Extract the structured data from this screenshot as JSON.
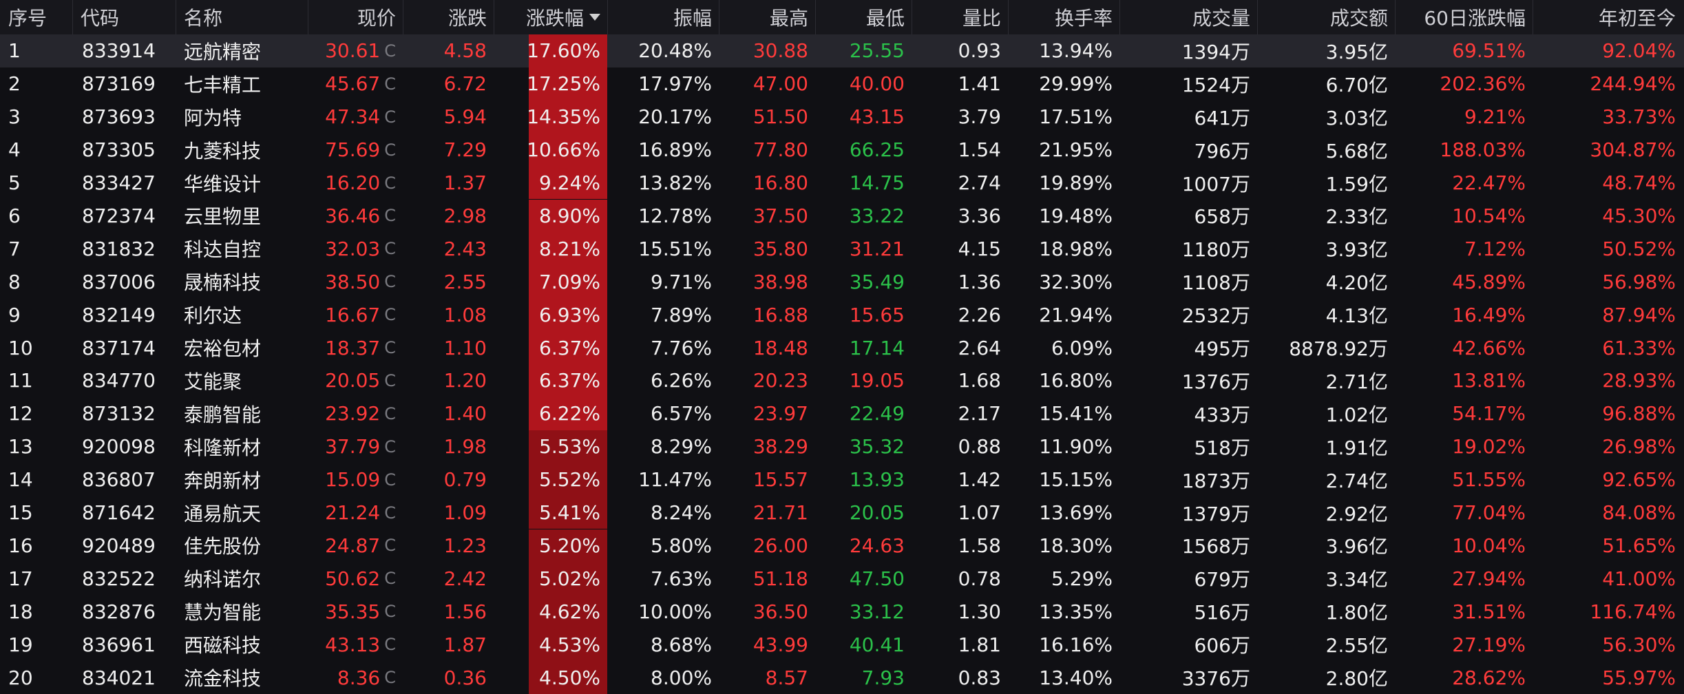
{
  "header": {
    "seq": "序号",
    "code": "代码",
    "name": "名称",
    "price": "现价",
    "change": "涨跌",
    "pct": "涨跌幅",
    "amplitude": "振幅",
    "high": "最高",
    "low": "最低",
    "vol_ratio": "量比",
    "turnover": "换手率",
    "volume": "成交量",
    "amount": "成交额",
    "d60": "60日涨跌幅",
    "ytd": "年初至今"
  },
  "price_flag": "C",
  "colors": {
    "up": "#ff3b3b",
    "down": "#2bc14a",
    "pct_bg_strong": "#b0151d",
    "pct_bg_mid": "#8f1016"
  },
  "rows": [
    {
      "seq": "1",
      "code": "833914",
      "name": "远航精密",
      "price": "30.61",
      "change": "4.58",
      "pct": "17.60%",
      "pct_value": 17.6,
      "amplitude": "20.48%",
      "high": "30.88",
      "low": "25.55",
      "low_dir": "down",
      "vol_ratio": "0.93",
      "turnover": "13.94%",
      "volume": "1394万",
      "amount": "3.95亿",
      "d60": "69.51%",
      "ytd": "92.04%"
    },
    {
      "seq": "2",
      "code": "873169",
      "name": "七丰精工",
      "price": "45.67",
      "change": "6.72",
      "pct": "17.25%",
      "pct_value": 17.25,
      "amplitude": "17.97%",
      "high": "47.00",
      "low": "40.00",
      "low_dir": "up",
      "vol_ratio": "1.41",
      "turnover": "29.99%",
      "volume": "1524万",
      "amount": "6.70亿",
      "d60": "202.36%",
      "ytd": "244.94%"
    },
    {
      "seq": "3",
      "code": "873693",
      "name": "阿为特",
      "price": "47.34",
      "change": "5.94",
      "pct": "14.35%",
      "pct_value": 14.35,
      "amplitude": "20.17%",
      "high": "51.50",
      "low": "43.15",
      "low_dir": "up",
      "vol_ratio": "3.79",
      "turnover": "17.51%",
      "volume": "641万",
      "amount": "3.03亿",
      "d60": "9.21%",
      "ytd": "33.73%"
    },
    {
      "seq": "4",
      "code": "873305",
      "name": "九菱科技",
      "price": "75.69",
      "change": "7.29",
      "pct": "10.66%",
      "pct_value": 10.66,
      "amplitude": "16.89%",
      "high": "77.80",
      "low": "66.25",
      "low_dir": "down",
      "vol_ratio": "1.54",
      "turnover": "21.95%",
      "volume": "796万",
      "amount": "5.68亿",
      "d60": "188.03%",
      "ytd": "304.87%"
    },
    {
      "seq": "5",
      "code": "833427",
      "name": "华维设计",
      "price": "16.20",
      "change": "1.37",
      "pct": "9.24%",
      "pct_value": 9.24,
      "amplitude": "13.82%",
      "high": "16.80",
      "low": "14.75",
      "low_dir": "down",
      "vol_ratio": "2.74",
      "turnover": "19.89%",
      "volume": "1007万",
      "amount": "1.59亿",
      "d60": "22.47%",
      "ytd": "48.74%"
    },
    {
      "seq": "6",
      "code": "872374",
      "name": "云里物里",
      "price": "36.46",
      "change": "2.98",
      "pct": "8.90%",
      "pct_value": 8.9,
      "amplitude": "12.78%",
      "high": "37.50",
      "low": "33.22",
      "low_dir": "down",
      "vol_ratio": "3.36",
      "turnover": "19.48%",
      "volume": "658万",
      "amount": "2.33亿",
      "d60": "10.54%",
      "ytd": "45.30%"
    },
    {
      "seq": "7",
      "code": "831832",
      "name": "科达自控",
      "price": "32.03",
      "change": "2.43",
      "pct": "8.21%",
      "pct_value": 8.21,
      "amplitude": "15.51%",
      "high": "35.80",
      "low": "31.21",
      "low_dir": "up",
      "vol_ratio": "4.15",
      "turnover": "18.98%",
      "volume": "1180万",
      "amount": "3.93亿",
      "d60": "7.12%",
      "ytd": "50.52%"
    },
    {
      "seq": "8",
      "code": "837006",
      "name": "晟楠科技",
      "price": "38.50",
      "change": "2.55",
      "pct": "7.09%",
      "pct_value": 7.09,
      "amplitude": "9.71%",
      "high": "38.98",
      "low": "35.49",
      "low_dir": "down",
      "vol_ratio": "1.36",
      "turnover": "32.30%",
      "volume": "1108万",
      "amount": "4.20亿",
      "d60": "45.89%",
      "ytd": "56.98%"
    },
    {
      "seq": "9",
      "code": "832149",
      "name": "利尔达",
      "price": "16.67",
      "change": "1.08",
      "pct": "6.93%",
      "pct_value": 6.93,
      "amplitude": "7.89%",
      "high": "16.88",
      "low": "15.65",
      "low_dir": "up",
      "vol_ratio": "2.26",
      "turnover": "21.94%",
      "volume": "2532万",
      "amount": "4.13亿",
      "d60": "16.49%",
      "ytd": "87.94%"
    },
    {
      "seq": "10",
      "code": "837174",
      "name": "宏裕包材",
      "price": "18.37",
      "change": "1.10",
      "pct": "6.37%",
      "pct_value": 6.37,
      "amplitude": "7.76%",
      "high": "18.48",
      "low": "17.14",
      "low_dir": "down",
      "vol_ratio": "2.64",
      "turnover": "6.09%",
      "volume": "495万",
      "amount": "8878.92万",
      "d60": "42.66%",
      "ytd": "61.33%"
    },
    {
      "seq": "11",
      "code": "834770",
      "name": "艾能聚",
      "price": "20.05",
      "change": "1.20",
      "pct": "6.37%",
      "pct_value": 6.37,
      "amplitude": "6.26%",
      "high": "20.23",
      "low": "19.05",
      "low_dir": "up",
      "vol_ratio": "1.68",
      "turnover": "16.80%",
      "volume": "1376万",
      "amount": "2.71亿",
      "d60": "13.81%",
      "ytd": "28.93%"
    },
    {
      "seq": "12",
      "code": "873132",
      "name": "泰鹏智能",
      "price": "23.92",
      "change": "1.40",
      "pct": "6.22%",
      "pct_value": 6.22,
      "amplitude": "6.57%",
      "high": "23.97",
      "low": "22.49",
      "low_dir": "down",
      "vol_ratio": "2.17",
      "turnover": "15.41%",
      "volume": "433万",
      "amount": "1.02亿",
      "d60": "54.17%",
      "ytd": "96.88%"
    },
    {
      "seq": "13",
      "code": "920098",
      "name": "科隆新材",
      "price": "37.79",
      "change": "1.98",
      "pct": "5.53%",
      "pct_value": 5.53,
      "amplitude": "8.29%",
      "high": "38.29",
      "low": "35.32",
      "low_dir": "down",
      "vol_ratio": "0.88",
      "turnover": "11.90%",
      "volume": "518万",
      "amount": "1.91亿",
      "d60": "19.02%",
      "ytd": "26.98%"
    },
    {
      "seq": "14",
      "code": "836807",
      "name": "奔朗新材",
      "price": "15.09",
      "change": "0.79",
      "pct": "5.52%",
      "pct_value": 5.52,
      "amplitude": "11.47%",
      "high": "15.57",
      "low": "13.93",
      "low_dir": "down",
      "vol_ratio": "1.42",
      "turnover": "15.15%",
      "volume": "1873万",
      "amount": "2.74亿",
      "d60": "51.55%",
      "ytd": "92.65%"
    },
    {
      "seq": "15",
      "code": "871642",
      "name": "通易航天",
      "price": "21.24",
      "change": "1.09",
      "pct": "5.41%",
      "pct_value": 5.41,
      "amplitude": "8.24%",
      "high": "21.71",
      "low": "20.05",
      "low_dir": "down",
      "vol_ratio": "1.07",
      "turnover": "13.69%",
      "volume": "1379万",
      "amount": "2.92亿",
      "d60": "77.04%",
      "ytd": "84.08%"
    },
    {
      "seq": "16",
      "code": "920489",
      "name": "佳先股份",
      "price": "24.87",
      "change": "1.23",
      "pct": "5.20%",
      "pct_value": 5.2,
      "amplitude": "5.80%",
      "high": "26.00",
      "low": "24.63",
      "low_dir": "up",
      "vol_ratio": "1.58",
      "turnover": "18.30%",
      "volume": "1568万",
      "amount": "3.96亿",
      "d60": "10.04%",
      "ytd": "51.65%"
    },
    {
      "seq": "17",
      "code": "832522",
      "name": "纳科诺尔",
      "price": "50.62",
      "change": "2.42",
      "pct": "5.02%",
      "pct_value": 5.02,
      "amplitude": "7.63%",
      "high": "51.18",
      "low": "47.50",
      "low_dir": "down",
      "vol_ratio": "0.78",
      "turnover": "5.29%",
      "volume": "679万",
      "amount": "3.34亿",
      "d60": "27.94%",
      "ytd": "41.00%"
    },
    {
      "seq": "18",
      "code": "832876",
      "name": "慧为智能",
      "price": "35.35",
      "change": "1.56",
      "pct": "4.62%",
      "pct_value": 4.62,
      "amplitude": "10.00%",
      "high": "36.50",
      "low": "33.12",
      "low_dir": "down",
      "vol_ratio": "1.30",
      "turnover": "13.35%",
      "volume": "516万",
      "amount": "1.80亿",
      "d60": "31.51%",
      "ytd": "116.74%"
    },
    {
      "seq": "19",
      "code": "836961",
      "name": "西磁科技",
      "price": "43.13",
      "change": "1.87",
      "pct": "4.53%",
      "pct_value": 4.53,
      "amplitude": "8.68%",
      "high": "43.99",
      "low": "40.41",
      "low_dir": "down",
      "vol_ratio": "1.81",
      "turnover": "16.16%",
      "volume": "606万",
      "amount": "2.55亿",
      "d60": "27.19%",
      "ytd": "56.30%"
    },
    {
      "seq": "20",
      "code": "834021",
      "name": "流金科技",
      "price": "8.36",
      "change": "0.36",
      "pct": "4.50%",
      "pct_value": 4.5,
      "amplitude": "8.00%",
      "high": "8.57",
      "low": "7.93",
      "low_dir": "down",
      "vol_ratio": "0.83",
      "turnover": "13.40%",
      "volume": "3376万",
      "amount": "2.80亿",
      "d60": "28.62%",
      "ytd": "55.97%"
    }
  ]
}
